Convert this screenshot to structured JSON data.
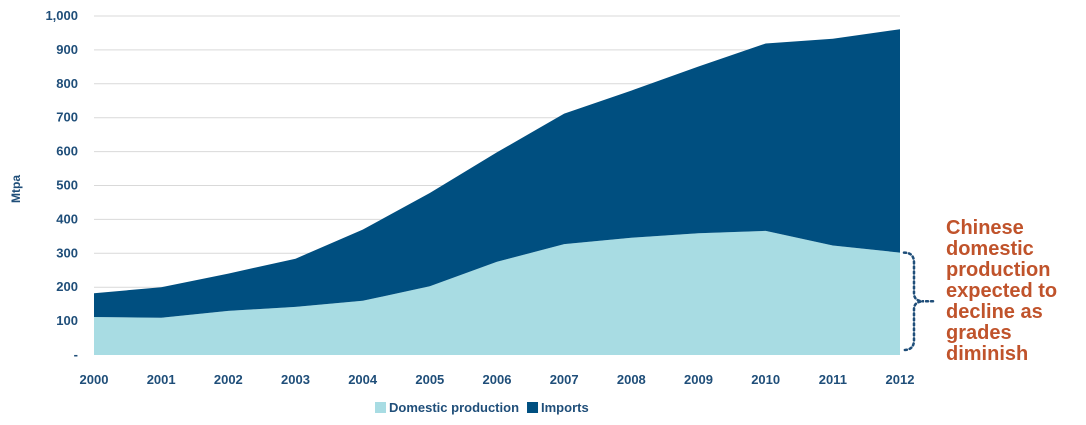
{
  "chart_data": {
    "type": "area",
    "stacked": true,
    "xlabel": "",
    "ylabel": "Mtpa",
    "ylim": [
      0,
      1000
    ],
    "y_ticks": [
      0,
      100,
      200,
      300,
      400,
      500,
      600,
      700,
      800,
      900,
      1000
    ],
    "y_tick_labels": [
      "-",
      "100",
      "200",
      "300",
      "400",
      "500",
      "600",
      "700",
      "800",
      "900",
      "1,000"
    ],
    "categories": [
      "2000",
      "2001",
      "2002",
      "2003",
      "2004",
      "2005",
      "2006",
      "2007",
      "2008",
      "2009",
      "2010",
      "2011",
      "2012"
    ],
    "series": [
      {
        "name": "Domestic production",
        "color": "#a8dce3",
        "values": [
          112,
          110,
          130,
          142,
          160,
          203,
          275,
          327,
          346,
          359,
          366,
          323,
          302
        ]
      },
      {
        "name": "Imports",
        "color": "#004f80",
        "values": [
          70,
          90,
          110,
          142,
          210,
          275,
          323,
          385,
          434,
          492,
          553,
          610,
          659
        ]
      }
    ],
    "grid": "horizontal",
    "legend_position": "bottom",
    "annotation": {
      "lines": [
        "Chinese",
        "domestic",
        "production",
        "expected to",
        "decline as",
        "grades",
        "diminish"
      ],
      "color": "#c0532b"
    }
  }
}
